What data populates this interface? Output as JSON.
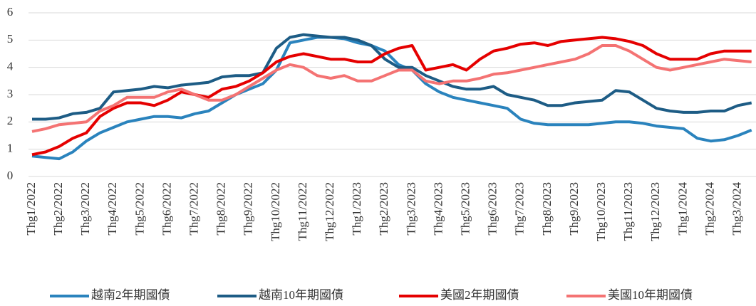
{
  "chart_data": {
    "type": "line",
    "categories": [
      "Thg1/2022",
      null,
      "Thg2/2022",
      null,
      "Thg3/2022",
      null,
      "Thg4/2022",
      null,
      "Thg5/2022",
      null,
      "Thg6/2022",
      null,
      "Thg7/2022",
      null,
      "Thg8/2022",
      null,
      "Thg9/2022",
      null,
      "Thg10/2022",
      null,
      "Thg11/2022",
      null,
      "Thg12/2022",
      null,
      "Thg1/2023",
      null,
      "Thg2/2023",
      null,
      "Thg3/2023",
      null,
      "Thg4/2023",
      null,
      "Thg5/2023",
      null,
      "Thg6/2023",
      null,
      "Thg7/2023",
      null,
      "Thg8/2023",
      null,
      "Thg9/2023",
      null,
      "Thg10/2023",
      null,
      "Thg11/2023",
      null,
      "Thg12/2023",
      null,
      "Thg1/2024",
      null,
      "Thg2/2024",
      null,
      "Thg3/2024",
      null
    ],
    "series": [
      {
        "name": "越南2年期國債",
        "color": "#2a83bd",
        "values": [
          0.75,
          0.7,
          0.65,
          0.9,
          1.3,
          1.6,
          1.8,
          2.0,
          2.1,
          2.2,
          2.2,
          2.15,
          2.3,
          2.4,
          2.7,
          3.0,
          3.2,
          3.4,
          3.9,
          4.9,
          5.0,
          5.1,
          5.1,
          5.05,
          4.9,
          4.8,
          4.6,
          4.1,
          3.9,
          3.4,
          3.1,
          2.9,
          2.8,
          2.7,
          2.6,
          2.5,
          2.1,
          1.95,
          1.9,
          1.9,
          1.9,
          1.9,
          1.95,
          2.0,
          2.0,
          1.95,
          1.85,
          1.8,
          1.75,
          1.4,
          1.3,
          1.35,
          1.5,
          1.7
        ]
      },
      {
        "name": "越南10年期國債",
        "color": "#1d5c85",
        "values": [
          2.1,
          2.1,
          2.15,
          2.3,
          2.35,
          2.5,
          3.1,
          3.15,
          3.2,
          3.3,
          3.25,
          3.35,
          3.4,
          3.45,
          3.65,
          3.7,
          3.7,
          3.8,
          4.7,
          5.1,
          5.2,
          5.15,
          5.1,
          5.1,
          5.0,
          4.8,
          4.3,
          4.0,
          4.0,
          3.7,
          3.5,
          3.3,
          3.2,
          3.2,
          3.3,
          3.0,
          2.9,
          2.8,
          2.6,
          2.6,
          2.7,
          2.75,
          2.8,
          3.15,
          3.1,
          2.8,
          2.5,
          2.4,
          2.35,
          2.35,
          2.4,
          2.4,
          2.6,
          2.7
        ]
      },
      {
        "name": "美國2年期國債",
        "color": "#e50000",
        "values": [
          0.8,
          0.9,
          1.1,
          1.4,
          1.6,
          2.2,
          2.5,
          2.7,
          2.7,
          2.6,
          2.8,
          3.1,
          3.0,
          2.9,
          3.2,
          3.3,
          3.5,
          3.8,
          4.2,
          4.4,
          4.5,
          4.4,
          4.3,
          4.3,
          4.2,
          4.2,
          4.5,
          4.7,
          4.8,
          3.9,
          4.0,
          4.1,
          3.9,
          4.3,
          4.6,
          4.7,
          4.85,
          4.9,
          4.8,
          4.95,
          5.0,
          5.05,
          5.1,
          5.05,
          4.95,
          4.8,
          4.5,
          4.3,
          4.3,
          4.3,
          4.5,
          4.6,
          4.6,
          4.6
        ]
      },
      {
        "name": "美國10年期國債",
        "color": "#f47373",
        "values": [
          1.65,
          1.75,
          1.9,
          1.95,
          2.0,
          2.4,
          2.6,
          2.9,
          2.9,
          2.9,
          3.1,
          3.2,
          3.0,
          2.8,
          2.8,
          3.0,
          3.3,
          3.6,
          3.9,
          4.1,
          4.0,
          3.7,
          3.6,
          3.7,
          3.5,
          3.5,
          3.7,
          3.9,
          3.9,
          3.5,
          3.4,
          3.5,
          3.5,
          3.6,
          3.75,
          3.8,
          3.9,
          4.0,
          4.1,
          4.2,
          4.3,
          4.5,
          4.8,
          4.8,
          4.6,
          4.3,
          4.0,
          3.9,
          4.0,
          4.1,
          4.2,
          4.3,
          4.25,
          4.2
        ]
      }
    ],
    "ylim": [
      0,
      6
    ],
    "yticks": [
      0,
      1,
      2,
      3,
      4,
      5,
      6
    ],
    "grid": true,
    "legend": "bottom"
  }
}
